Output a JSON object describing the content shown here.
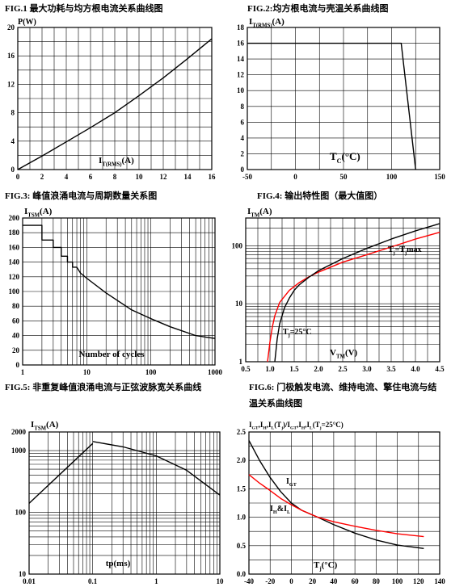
{
  "chart_data": [
    {
      "id": "fig1",
      "type": "line",
      "title": "FIG.1  最大功耗与均方根电流关系曲线图",
      "ylabel": "P(W)",
      "xlabel_main": "I",
      "xlabel_sub": "T(RMS)",
      "xlabel_tail": "(A)",
      "xlim": [
        0,
        16
      ],
      "ylim": [
        0,
        20
      ],
      "x_ticks": [
        "0",
        "2",
        "4",
        "6",
        "8",
        "10",
        "12",
        "14",
        "16"
      ],
      "y_ticks": [
        "0",
        "4",
        "8",
        "12",
        "16",
        "20"
      ],
      "series": [
        {
          "color": "#000000",
          "points": [
            [
              0,
              0
            ],
            [
              2,
              1.9
            ],
            [
              4,
              3.9
            ],
            [
              6,
              5.9
            ],
            [
              8,
              8.0
            ],
            [
              10,
              10.4
            ],
            [
              12,
              12.9
            ],
            [
              14,
              15.6
            ],
            [
              16,
              18.4
            ]
          ]
        }
      ]
    },
    {
      "id": "fig2",
      "type": "line",
      "title": "FIG.2:均方根电流与壳温关系曲线图",
      "ylabel_main": "I",
      "ylabel_sub": "T(RMS)",
      "ylabel_tail": "(A)",
      "xlabel_main": "T",
      "xlabel_sub": "C",
      "xlabel_tail": "(°C)",
      "xlim": [
        -50,
        150
      ],
      "ylim": [
        0,
        18
      ],
      "x_ticks": [
        "-50",
        "0",
        "50",
        "100",
        "150"
      ],
      "y_ticks": [
        "0",
        "2",
        "4",
        "6",
        "8",
        "10",
        "12",
        "14",
        "16",
        "18"
      ],
      "series": [
        {
          "color": "#000000",
          "points": [
            [
              -50,
              16
            ],
            [
              110,
              16
            ],
            [
              125,
              0
            ]
          ]
        }
      ]
    },
    {
      "id": "fig3",
      "type": "line",
      "title": "FIG.3:   峰值浪涌电流与周期数量关系图",
      "ylabel_main": "I",
      "ylabel_sub": "TSM",
      "ylabel_tail": "(A)",
      "xlabel": "Number of cycles",
      "xscale": "log",
      "xlim": [
        1,
        1000
      ],
      "ylim": [
        0,
        200
      ],
      "x_ticks": [
        "1",
        "10",
        "100",
        "1000"
      ],
      "y_ticks": [
        "0",
        "20",
        "40",
        "60",
        "80",
        "100",
        "120",
        "140",
        "160",
        "180",
        "200"
      ],
      "series": [
        {
          "color": "#000000",
          "points": [
            [
              1,
              190
            ],
            [
              2,
              190
            ],
            [
              2,
              170
            ],
            [
              3,
              170
            ],
            [
              3,
              160
            ],
            [
              4,
              160
            ],
            [
              4,
              148
            ],
            [
              5,
              148
            ],
            [
              5,
              140
            ],
            [
              6,
              140
            ],
            [
              6,
              133
            ],
            [
              7,
              133
            ],
            [
              8,
              125
            ],
            [
              10,
              118
            ],
            [
              20,
              98
            ],
            [
              50,
              75
            ],
            [
              100,
              63
            ],
            [
              200,
              52
            ],
            [
              500,
              40
            ],
            [
              1000,
              36
            ]
          ]
        }
      ]
    },
    {
      "id": "fig4",
      "type": "line",
      "title": "FIG.4:  输出特性图（最大值图）",
      "ylabel_main": "I",
      "ylabel_sub": "TM",
      "ylabel_tail": "(A)",
      "xlabel_main": "V",
      "xlabel_sub": "TM",
      "xlabel_tail": "(V)",
      "yscale": "log",
      "xlim": [
        0.5,
        4.5
      ],
      "ylim": [
        1,
        300
      ],
      "x_ticks": [
        "0.5",
        "1.0",
        "1.5",
        "2.0",
        "2.5",
        "3.0",
        "3.5",
        "4.0",
        "4.5"
      ],
      "y_ticks": [
        "1",
        "10",
        "100"
      ],
      "annotations": [
        {
          "main": "T",
          "sub": "j",
          "tail": "=T",
          "sub2": "j",
          "tail2": "max"
        },
        {
          "main": "T",
          "sub": "j",
          "tail": "=25°C"
        }
      ],
      "series": [
        {
          "color": "#ff0000",
          "points": [
            [
              0.95,
              1
            ],
            [
              1.0,
              2.2
            ],
            [
              1.05,
              4
            ],
            [
              1.1,
              6.2
            ],
            [
              1.2,
              10.5
            ],
            [
              1.4,
              17
            ],
            [
              1.6,
              23
            ],
            [
              1.8,
              29
            ],
            [
              2.0,
              35
            ],
            [
              2.5,
              52
            ],
            [
              3.0,
              70
            ],
            [
              3.5,
              95
            ],
            [
              4.0,
              130
            ],
            [
              4.5,
              170
            ]
          ]
        },
        {
          "color": "#000000",
          "points": [
            [
              1.1,
              1
            ],
            [
              1.15,
              2.5
            ],
            [
              1.2,
              4.5
            ],
            [
              1.3,
              8.5
            ],
            [
              1.4,
              12.5
            ],
            [
              1.5,
              17
            ],
            [
              1.6,
              21
            ],
            [
              1.8,
              28.5
            ],
            [
              2.0,
              37
            ],
            [
              2.5,
              60
            ],
            [
              3.0,
              90
            ],
            [
              3.5,
              130
            ],
            [
              4.0,
              180
            ],
            [
              4.5,
              240
            ]
          ]
        }
      ]
    },
    {
      "id": "fig5",
      "type": "line",
      "title": "FIG.5:  非重复峰值浪涌电流与正弦波脉宽关系曲线",
      "ylabel_main": "I",
      "ylabel_sub": "TSM",
      "ylabel_tail": "(A)",
      "xlabel": "tp(ms)",
      "xscale": "log",
      "yscale": "log",
      "xlim": [
        0.01,
        10
      ],
      "ylim": [
        10,
        2000
      ],
      "x_ticks": [
        "0.01",
        "0.1",
        "1",
        "10"
      ],
      "y_ticks": [
        "10",
        "100",
        "1000",
        "2000"
      ],
      "series": [
        {
          "color": "#000000",
          "points": [
            [
              0.01,
              140
            ],
            [
              0.1,
              1300
            ]
          ]
        },
        {
          "color": "#000000",
          "points": [
            [
              0.1,
              1400
            ],
            [
              0.3,
              1150
            ],
            [
              1,
              820
            ],
            [
              3,
              480
            ],
            [
              10,
              190
            ]
          ]
        }
      ]
    },
    {
      "id": "fig6",
      "type": "line",
      "title": "FIG.6:  门极触发电流、维持电流、擎住电流与结温关系曲线图",
      "ylabel_text": "I",
      "ylabel_parts": [
        {
          "t": "I",
          "s": "GT"
        },
        {
          "t": ",I",
          "s": "H"
        },
        {
          "t": ",I",
          "s": "L"
        },
        {
          "t": "(T",
          "s": "j"
        },
        {
          "t": ")/I",
          "s": "GT"
        },
        {
          "t": ",I",
          "s": "H"
        },
        {
          "t": ",I",
          "s": "L"
        },
        {
          "t": "(T",
          "s": "j"
        },
        {
          "t": "=25°C)",
          "s": ""
        }
      ],
      "xlabel_main": "T",
      "xlabel_sub": "j",
      "xlabel_tail": "(°C)",
      "xlim": [
        -40,
        140
      ],
      "ylim": [
        0,
        2.5
      ],
      "x_ticks": [
        "-40",
        "-20",
        "0",
        "20",
        "40",
        "60",
        "80",
        "100",
        "120",
        "140"
      ],
      "y_ticks": [
        "0.0",
        "0.5",
        "1.0",
        "1.5",
        "2.0",
        "2.5"
      ],
      "annotations": [
        {
          "main": "I",
          "sub": "GT",
          "tail": ""
        },
        {
          "main": "I",
          "sub": "H",
          "tail": "&I",
          "sub2": "L",
          "tail2": ""
        }
      ],
      "series": [
        {
          "name": "I_GT",
          "color": "#000000",
          "points": [
            [
              -40,
              2.35
            ],
            [
              -30,
              2.0
            ],
            [
              -20,
              1.7
            ],
            [
              -10,
              1.45
            ],
            [
              0,
              1.25
            ],
            [
              10,
              1.12
            ],
            [
              25,
              1.0
            ],
            [
              40,
              0.87
            ],
            [
              60,
              0.72
            ],
            [
              80,
              0.6
            ],
            [
              100,
              0.51
            ],
            [
              125,
              0.45
            ]
          ]
        },
        {
          "name": "I_H&I_L",
          "color": "#ff0000",
          "points": [
            [
              -40,
              1.75
            ],
            [
              -30,
              1.6
            ],
            [
              -20,
              1.47
            ],
            [
              -10,
              1.33
            ],
            [
              0,
              1.22
            ],
            [
              10,
              1.12
            ],
            [
              25,
              1.0
            ],
            [
              40,
              0.92
            ],
            [
              60,
              0.84
            ],
            [
              80,
              0.77
            ],
            [
              100,
              0.71
            ],
            [
              125,
              0.66
            ]
          ]
        }
      ]
    }
  ]
}
